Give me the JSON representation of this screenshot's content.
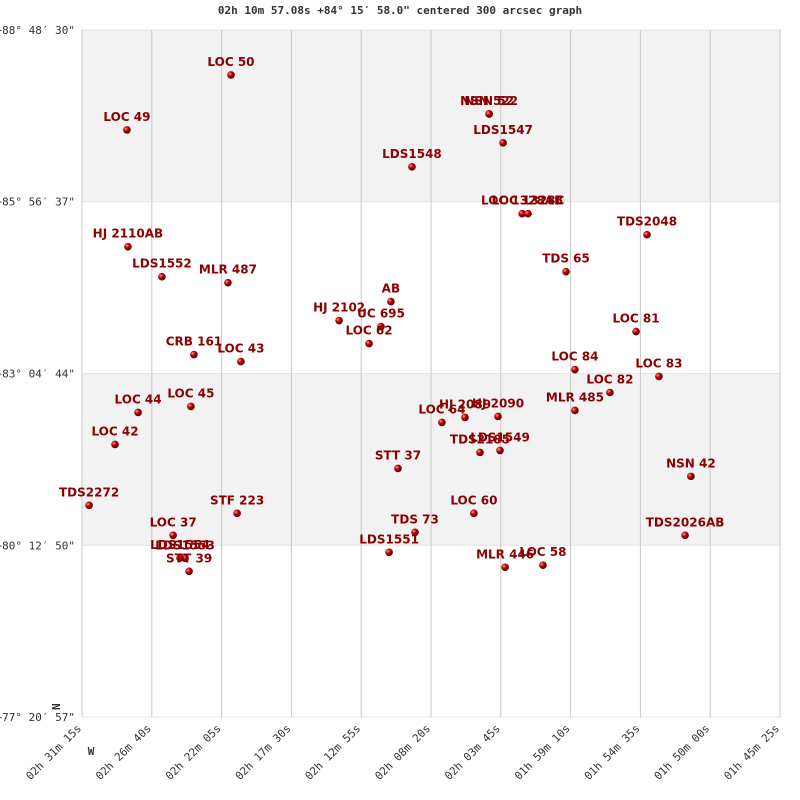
{
  "chart_data": {
    "type": "scatter",
    "title": "02h 10m 57.08s +84° 15′ 58.0\" centered 300 arcsec graph",
    "north_label": "N",
    "west_label": "W",
    "color": "#c00000",
    "label_color": "#8b0000",
    "xlim": [
      9075,
      6325
    ],
    "xticks": [
      {
        "value": 9075,
        "label": "02h 31m 15s"
      },
      {
        "value": 8800,
        "label": "02h 26m 40s"
      },
      {
        "value": 8525,
        "label": "02h 22m 05s"
      },
      {
        "value": 8250,
        "label": "02h 17m 30s"
      },
      {
        "value": 7975,
        "label": "02h 12m 55s"
      },
      {
        "value": 7700,
        "label": "02h 08m 20s"
      },
      {
        "value": 7425,
        "label": "02h 03m 45s"
      },
      {
        "value": 7150,
        "label": "01h 59m 10s"
      },
      {
        "value": 6875,
        "label": "01h 54m 35s"
      },
      {
        "value": 6600,
        "label": "01h 50m 00s"
      },
      {
        "value": 6325,
        "label": "01h 45m 25s"
      }
    ],
    "ylim": [
      77.34917,
      88.80833
    ],
    "yticks": [
      {
        "value": 88.80833,
        "label": "+88° 48′ 30\""
      },
      {
        "value": 85.94361,
        "label": "+85° 56′ 37\""
      },
      {
        "value": 83.07889,
        "label": "+83° 04′ 44\""
      },
      {
        "value": 80.21389,
        "label": "+80° 12′ 50\""
      },
      {
        "value": 77.34917,
        "label": "+77° 20′ 57\""
      }
    ],
    "labels": [
      "LOC  50",
      "LOC  49",
      "NSN 522",
      "NSN  52",
      "LDS1547",
      "LDS1548",
      "LOC 1328AB",
      "LOC 1328C",
      "TDS2048",
      "HJ 2110AB",
      "LDS1552",
      "MLR 487",
      "TDS  65",
      "AB",
      "HJ 2102",
      "UC  695",
      "LOC  62",
      "LOC  81",
      "CRB 161",
      "LOC  43",
      "LOC  84",
      "LOC  83",
      "LOC  82",
      "MLR 485",
      "LOC  44",
      "LOC  45",
      "HJ 2089",
      "HJ 2090",
      "LOC  64",
      "LOC  42",
      "TDS2185",
      "LDS1549",
      "STT  37",
      "NSN  42",
      "TDS2272",
      "STF 223",
      "LOC  60",
      "TDS  73",
      "TDS2026AB",
      "LOC  37",
      "LDS1551",
      "LDS1553",
      "LDS1554",
      "STT  39",
      "MLR 446",
      "LOC  58"
    ],
    "x": [
      8488,
      8898,
      7471,
      7471,
      7416,
      7775,
      7341,
      7318,
      6849,
      8894,
      8760,
      8500,
      7168,
      7858,
      8062,
      7897,
      7944,
      6892,
      8634,
      8449,
      7133,
      6802,
      6995,
      7133,
      8854,
      8646,
      7566,
      7436,
      7657,
      8945,
      7507,
      7428,
      7830,
      6676,
      9047,
      8464,
      7531,
      7763,
      6699,
      8716,
      7865,
      8669,
      8689,
      8653,
      7408,
      7259
    ],
    "values": [
      88.058,
      87.142,
      87.409,
      87.409,
      86.926,
      86.526,
      85.744,
      85.744,
      85.394,
      85.194,
      84.694,
      84.594,
      84.777,
      84.278,
      83.961,
      83.861,
      83.578,
      83.778,
      83.395,
      83.278,
      83.145,
      83.029,
      82.762,
      82.462,
      82.429,
      82.529,
      82.346,
      82.362,
      82.263,
      81.896,
      81.763,
      81.796,
      81.496,
      81.363,
      80.88,
      80.746,
      80.746,
      80.43,
      80.38,
      80.38,
      80.097,
      79.997,
      80.0,
      79.78,
      79.847,
      79.881
    ]
  }
}
